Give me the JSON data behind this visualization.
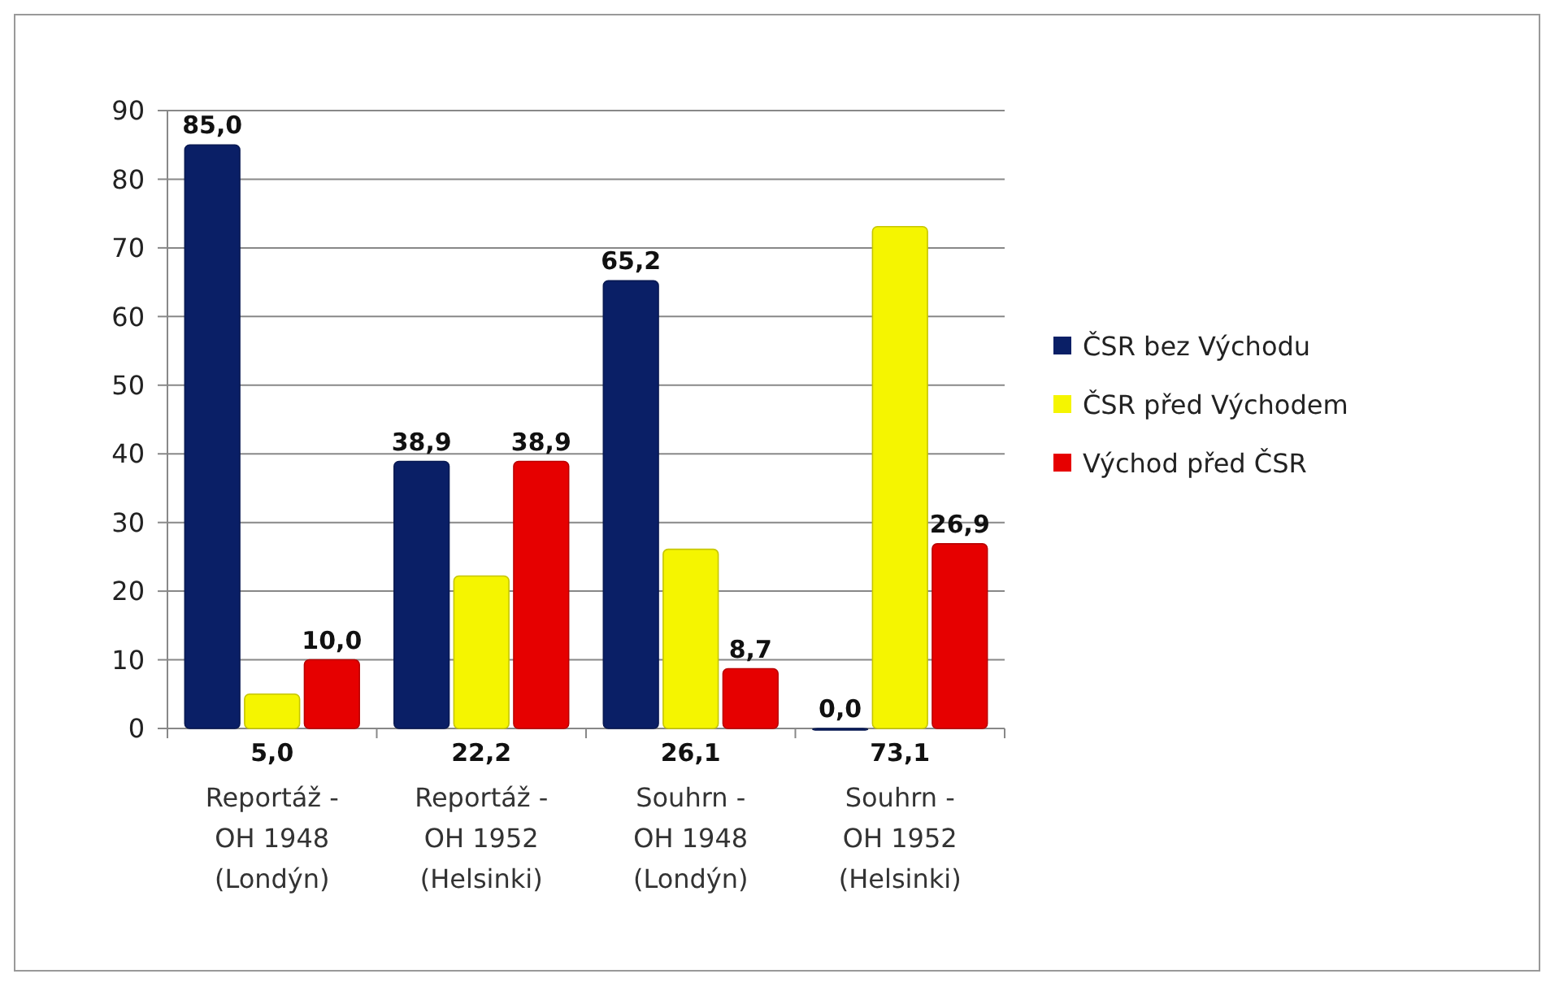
{
  "chart_data": {
    "type": "bar",
    "categories": [
      "Reportáž - OH 1948 (Londýn)",
      "Reportáž - OH 1952 (Helsinki)",
      "Souhrn - OH 1948 (Londýn)",
      "Souhrn - OH 1952 (Helsinki)"
    ],
    "series": [
      {
        "name": "ČSR bez Východu",
        "color": "#0a1f66",
        "values": [
          85.0,
          38.9,
          65.2,
          0.0
        ],
        "value_labels": [
          "85,0",
          "38,9",
          "65,2",
          "0,0"
        ]
      },
      {
        "name": "ČSR před Východem",
        "color": "#f5f500",
        "values": [
          5.0,
          22.2,
          26.1,
          73.1
        ],
        "value_labels": [
          "5,0",
          "22,2",
          "26,1",
          "73,1"
        ]
      },
      {
        "name": "Východ před ČSR",
        "color": "#e60000",
        "values": [
          10.0,
          38.9,
          8.7,
          26.9
        ],
        "value_labels": [
          "10,0",
          "38,9",
          "8,7",
          "26,9"
        ]
      }
    ],
    "ylim": [
      0,
      90
    ],
    "yticks": [
      0,
      10,
      20,
      30,
      40,
      50,
      60,
      70,
      80,
      90
    ],
    "grid": "y",
    "legend": "right"
  }
}
